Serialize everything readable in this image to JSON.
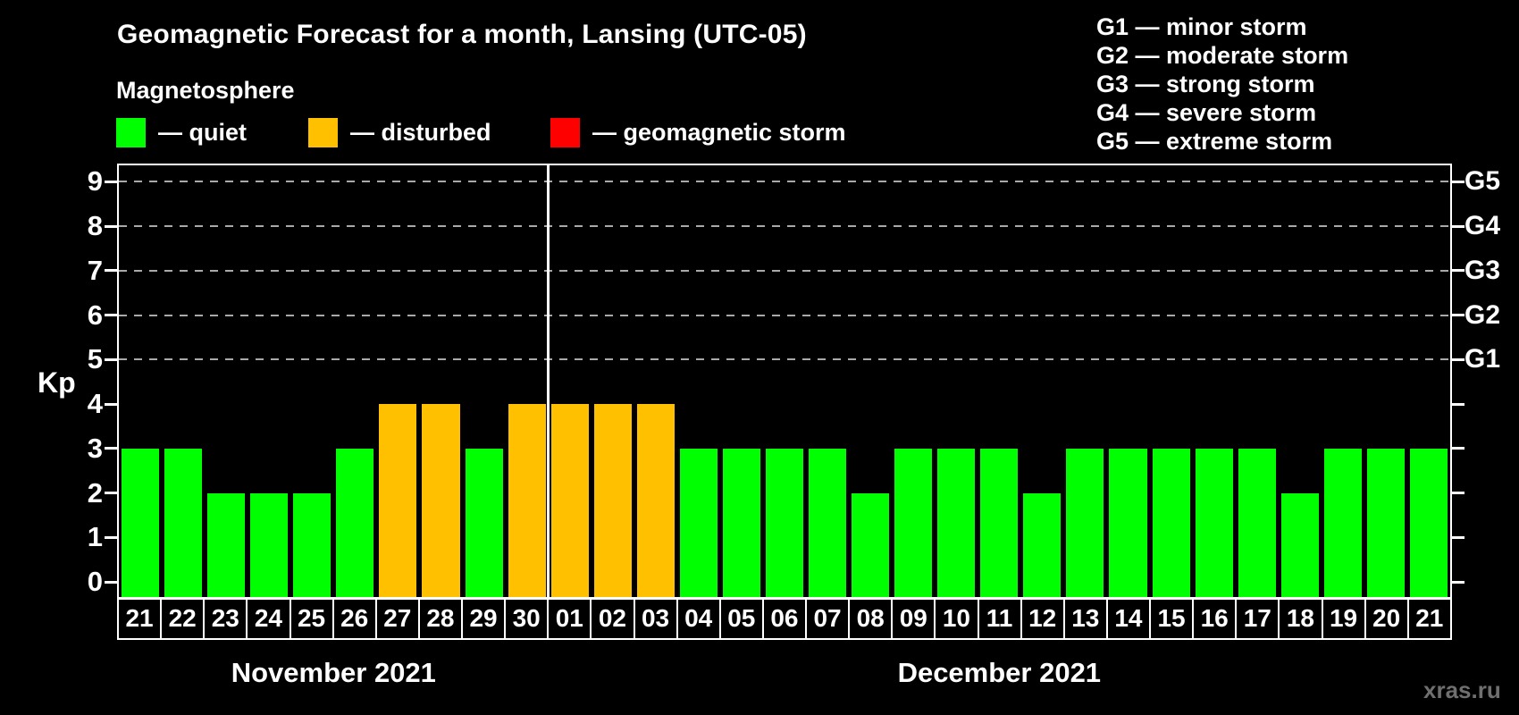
{
  "title": "Geomagnetic Forecast for a month, Lansing (UTC-05)",
  "subtitle": "Magnetosphere",
  "watermark": "xras.ru",
  "colors": {
    "quiet": "#00FF00",
    "disturbed": "#FFC000",
    "storm": "#FF0000",
    "grid": "#A9A9A9",
    "text": "#FFFFFF",
    "watermark": "#6F6F6F",
    "background": "#000000"
  },
  "legend": [
    {
      "label": "— quiet",
      "color_key": "quiet"
    },
    {
      "label": "— disturbed",
      "color_key": "disturbed"
    },
    {
      "label": "— geomagnetic storm",
      "color_key": "storm"
    }
  ],
  "g_scale_legend": [
    "G1 — minor storm",
    "G2 — moderate storm",
    "G3 — strong storm",
    "G4 — severe storm",
    "G5 — extreme storm"
  ],
  "axes": {
    "y_label": "Kp",
    "y_ticks": [
      0,
      1,
      2,
      3,
      4,
      5,
      6,
      7,
      8,
      9
    ],
    "gridline_kps": [
      5,
      6,
      7,
      8,
      9
    ],
    "right_ticks": [
      {
        "kp": 5,
        "label": "G1"
      },
      {
        "kp": 6,
        "label": "G2"
      },
      {
        "kp": 7,
        "label": "G3"
      },
      {
        "kp": 8,
        "label": "G4"
      },
      {
        "kp": 9,
        "label": "G5"
      }
    ]
  },
  "chart_data": {
    "type": "bar",
    "title": "Geomagnetic Forecast for a month, Lansing (UTC-05)",
    "ylabel": "Kp",
    "ylim": [
      0,
      9
    ],
    "grid": "dashed horizontal lines at Kp 5-9 (G1-G5)",
    "legend_position": "above chart",
    "months": [
      {
        "name": "November 2021",
        "days": 10
      },
      {
        "name": "December 2021",
        "days": 21
      }
    ],
    "x": [
      "21",
      "22",
      "23",
      "24",
      "25",
      "26",
      "27",
      "28",
      "29",
      "30",
      "01",
      "02",
      "03",
      "04",
      "05",
      "06",
      "07",
      "08",
      "09",
      "10",
      "11",
      "12",
      "13",
      "14",
      "15",
      "16",
      "17",
      "18",
      "19",
      "20",
      "21"
    ],
    "values": [
      3,
      3,
      2,
      2,
      2,
      3,
      4,
      4,
      3,
      4,
      4,
      4,
      4,
      3,
      3,
      3,
      3,
      2,
      3,
      3,
      3,
      2,
      3,
      3,
      3,
      3,
      3,
      2,
      3,
      3,
      3
    ],
    "status": [
      "quiet",
      "quiet",
      "quiet",
      "quiet",
      "quiet",
      "quiet",
      "disturbed",
      "disturbed",
      "quiet",
      "disturbed",
      "disturbed",
      "disturbed",
      "disturbed",
      "quiet",
      "quiet",
      "quiet",
      "quiet",
      "quiet",
      "quiet",
      "quiet",
      "quiet",
      "quiet",
      "quiet",
      "quiet",
      "quiet",
      "quiet",
      "quiet",
      "quiet",
      "quiet",
      "quiet",
      "quiet"
    ]
  }
}
